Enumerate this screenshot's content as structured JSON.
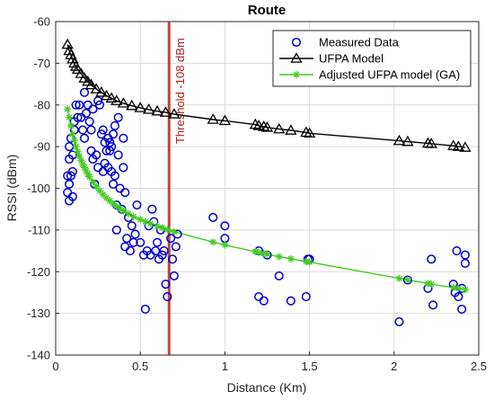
{
  "chart_data": {
    "type": "scatter",
    "title": "Route",
    "xlabel": "Distance (Km)",
    "ylabel": "RSSI (dBm)",
    "xlim": [
      0,
      2.5
    ],
    "ylim": [
      -140,
      -60
    ],
    "xticks": [
      "0",
      "0.5",
      "1",
      "1.5",
      "2",
      "2.5"
    ],
    "yticks": [
      "-60",
      "-70",
      "-80",
      "-90",
      "-100",
      "-110",
      "-120",
      "-130",
      "-140"
    ],
    "grid": true,
    "legend_position": "top-right",
    "threshold": {
      "x": 0.67,
      "label": "Threshold -108 dBm",
      "color": "#b22222"
    },
    "series": [
      {
        "name": "Measured Data",
        "marker": "circle",
        "color": "#0000cc",
        "points": [
          [
            0.07,
            -97
          ],
          [
            0.07,
            -101
          ],
          [
            0.08,
            -99
          ],
          [
            0.08,
            -103
          ],
          [
            0.08,
            -93
          ],
          [
            0.08,
            -90
          ],
          [
            0.09,
            -88
          ],
          [
            0.09,
            -97
          ],
          [
            0.1,
            -102
          ],
          [
            0.1,
            -96
          ],
          [
            0.1,
            -92
          ],
          [
            0.11,
            -84
          ],
          [
            0.11,
            -86
          ],
          [
            0.12,
            -80
          ],
          [
            0.13,
            -83
          ],
          [
            0.14,
            -80
          ],
          [
            0.15,
            -83
          ],
          [
            0.16,
            -86
          ],
          [
            0.17,
            -77
          ],
          [
            0.17,
            -88
          ],
          [
            0.18,
            -82
          ],
          [
            0.19,
            -80
          ],
          [
            0.2,
            -84
          ],
          [
            0.21,
            -86
          ],
          [
            0.21,
            -91
          ],
          [
            0.22,
            -93
          ],
          [
            0.22,
            -81
          ],
          [
            0.23,
            -99
          ],
          [
            0.24,
            -92
          ],
          [
            0.25,
            -95
          ],
          [
            0.25,
            -79
          ],
          [
            0.26,
            -80
          ],
          [
            0.27,
            -87
          ],
          [
            0.28,
            -86
          ],
          [
            0.28,
            -96
          ],
          [
            0.29,
            -89
          ],
          [
            0.29,
            -94
          ],
          [
            0.3,
            -91
          ],
          [
            0.31,
            -88
          ],
          [
            0.31,
            -95
          ],
          [
            0.32,
            -89
          ],
          [
            0.32,
            -91
          ],
          [
            0.33,
            -90
          ],
          [
            0.33,
            -96
          ],
          [
            0.34,
            -87
          ],
          [
            0.34,
            -99
          ],
          [
            0.35,
            -97
          ],
          [
            0.35,
            -85
          ],
          [
            0.36,
            -104
          ],
          [
            0.36,
            -110
          ],
          [
            0.37,
            -83
          ],
          [
            0.37,
            -92
          ],
          [
            0.38,
            -100
          ],
          [
            0.39,
            -105
          ],
          [
            0.4,
            -95
          ],
          [
            0.4,
            -88
          ],
          [
            0.41,
            -101
          ],
          [
            0.41,
            -114
          ],
          [
            0.42,
            -112
          ],
          [
            0.43,
            -107
          ],
          [
            0.44,
            -115
          ],
          [
            0.45,
            -109
          ],
          [
            0.46,
            -113
          ],
          [
            0.47,
            -111
          ],
          [
            0.48,
            -104
          ],
          [
            0.5,
            -113
          ],
          [
            0.52,
            -116
          ],
          [
            0.53,
            -129
          ],
          [
            0.54,
            -115
          ],
          [
            0.55,
            -109
          ],
          [
            0.56,
            -116
          ],
          [
            0.57,
            -105
          ],
          [
            0.58,
            -108
          ],
          [
            0.59,
            -115
          ],
          [
            0.6,
            -113
          ],
          [
            0.61,
            -117
          ],
          [
            0.62,
            -110
          ],
          [
            0.63,
            -116
          ],
          [
            0.64,
            -115
          ],
          [
            0.65,
            -123
          ],
          [
            0.66,
            -126
          ],
          [
            0.68,
            -112
          ],
          [
            0.69,
            -117
          ],
          [
            0.7,
            -121
          ],
          [
            0.71,
            -114
          ],
          [
            0.72,
            -111
          ],
          [
            0.93,
            -107
          ],
          [
            1.0,
            -112
          ],
          [
            1.0,
            -109
          ],
          [
            1.2,
            -115
          ],
          [
            1.2,
            -126
          ],
          [
            1.23,
            -127
          ],
          [
            1.25,
            -116
          ],
          [
            1.32,
            -121
          ],
          [
            1.39,
            -127
          ],
          [
            1.48,
            -126
          ],
          [
            1.49,
            -117
          ],
          [
            1.5,
            -117
          ],
          [
            2.03,
            -132
          ],
          [
            2.08,
            -122
          ],
          [
            2.2,
            -124
          ],
          [
            2.22,
            -117
          ],
          [
            2.23,
            -128
          ],
          [
            2.35,
            -123
          ],
          [
            2.36,
            -125
          ],
          [
            2.37,
            -115
          ],
          [
            2.38,
            -126
          ],
          [
            2.4,
            -124
          ],
          [
            2.4,
            -129
          ],
          [
            2.42,
            -116
          ],
          [
            2.42,
            -118
          ]
        ]
      },
      {
        "name": "UFPA Model",
        "marker": "triangle",
        "color": "#000000",
        "points": [
          [
            0.07,
            -65.5
          ],
          [
            0.08,
            -67
          ],
          [
            0.09,
            -68
          ],
          [
            0.1,
            -69
          ],
          [
            0.11,
            -70
          ],
          [
            0.12,
            -70.8
          ],
          [
            0.13,
            -71.5
          ],
          [
            0.15,
            -72.5
          ],
          [
            0.17,
            -73.6
          ],
          [
            0.19,
            -74.4
          ],
          [
            0.21,
            -75.2
          ],
          [
            0.24,
            -76.2
          ],
          [
            0.27,
            -77
          ],
          [
            0.3,
            -77.8
          ],
          [
            0.33,
            -78.4
          ],
          [
            0.36,
            -79
          ],
          [
            0.4,
            -79.6
          ],
          [
            0.45,
            -80.2
          ],
          [
            0.5,
            -80.7
          ],
          [
            0.55,
            -81.1
          ],
          [
            0.6,
            -81.5
          ],
          [
            0.65,
            -81.8
          ],
          [
            0.7,
            -82.2
          ],
          [
            0.93,
            -83.5
          ],
          [
            1.0,
            -83.8
          ],
          [
            1.18,
            -84.7
          ],
          [
            1.2,
            -85
          ],
          [
            1.23,
            -85.2
          ],
          [
            1.25,
            -85.4
          ],
          [
            1.32,
            -85.8
          ],
          [
            1.39,
            -86.1
          ],
          [
            1.48,
            -86.6
          ],
          [
            1.5,
            -86.8
          ],
          [
            2.03,
            -88.6
          ],
          [
            2.08,
            -88.8
          ],
          [
            2.2,
            -89.2
          ],
          [
            2.22,
            -89.3
          ],
          [
            2.35,
            -89.8
          ],
          [
            2.38,
            -90
          ],
          [
            2.42,
            -90.2
          ]
        ]
      },
      {
        "name": "Adjusted UFPA model (GA)",
        "marker": "star",
        "color": "#44cc22",
        "points": [
          [
            0.07,
            -81
          ],
          [
            0.08,
            -83
          ],
          [
            0.09,
            -85
          ],
          [
            0.1,
            -87
          ],
          [
            0.11,
            -88.5
          ],
          [
            0.12,
            -90
          ],
          [
            0.13,
            -91.2
          ],
          [
            0.14,
            -92.3
          ],
          [
            0.15,
            -93.3
          ],
          [
            0.16,
            -94.2
          ],
          [
            0.17,
            -95
          ],
          [
            0.18,
            -95.8
          ],
          [
            0.19,
            -96.6
          ],
          [
            0.2,
            -97.2
          ],
          [
            0.22,
            -98.5
          ],
          [
            0.24,
            -99.6
          ],
          [
            0.26,
            -100.6
          ],
          [
            0.28,
            -101.5
          ],
          [
            0.3,
            -102.3
          ],
          [
            0.32,
            -103
          ],
          [
            0.34,
            -103.7
          ],
          [
            0.36,
            -104.3
          ],
          [
            0.38,
            -104.9
          ],
          [
            0.4,
            -105.4
          ],
          [
            0.43,
            -106.1
          ],
          [
            0.46,
            -106.8
          ],
          [
            0.5,
            -107.5
          ],
          [
            0.53,
            -108
          ],
          [
            0.56,
            -108.5
          ],
          [
            0.6,
            -109.1
          ],
          [
            0.63,
            -109.5
          ],
          [
            0.66,
            -109.9
          ],
          [
            0.7,
            -110.4
          ],
          [
            0.93,
            -112.9
          ],
          [
            1.0,
            -113.6
          ],
          [
            1.18,
            -115.2
          ],
          [
            1.2,
            -115.4
          ],
          [
            1.23,
            -115.6
          ],
          [
            1.25,
            -115.8
          ],
          [
            1.32,
            -116.4
          ],
          [
            1.39,
            -116.9
          ],
          [
            1.48,
            -117.6
          ],
          [
            1.5,
            -117.7
          ],
          [
            2.03,
            -121.6
          ],
          [
            2.08,
            -122
          ],
          [
            2.2,
            -122.8
          ],
          [
            2.22,
            -123
          ],
          [
            2.35,
            -123.8
          ],
          [
            2.38,
            -124
          ],
          [
            2.42,
            -124.3
          ]
        ]
      }
    ]
  }
}
